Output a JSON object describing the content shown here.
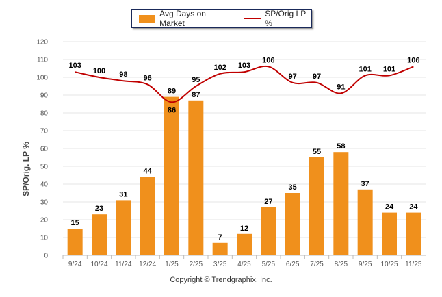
{
  "chart_data": {
    "type": "bar",
    "categories": [
      "9/24",
      "10/24",
      "11/24",
      "12/24",
      "1/25",
      "2/25",
      "3/25",
      "4/25",
      "5/25",
      "6/25",
      "7/25",
      "8/25",
      "9/25",
      "10/25",
      "11/25"
    ],
    "series": [
      {
        "name": "Avg Days on Market",
        "type": "bar",
        "color": "#f0901c",
        "values": [
          15,
          23,
          31,
          44,
          89,
          87,
          7,
          12,
          27,
          35,
          55,
          58,
          37,
          24,
          24
        ]
      },
      {
        "name": "SP/Orig LP %",
        "type": "line",
        "color": "#c00000",
        "values": [
          103,
          100,
          98,
          96,
          86,
          95,
          102,
          103,
          106,
          97,
          97,
          91,
          101,
          101,
          106
        ]
      }
    ],
    "ylabel": "SP/Orig. LP %",
    "ylim": [
      0,
      120
    ],
    "yticks": [
      0,
      10,
      20,
      30,
      40,
      50,
      60,
      70,
      80,
      90,
      100,
      110,
      120
    ],
    "grid": true,
    "legend": "top"
  },
  "footer": "Copyright © Trendgraphix, Inc."
}
